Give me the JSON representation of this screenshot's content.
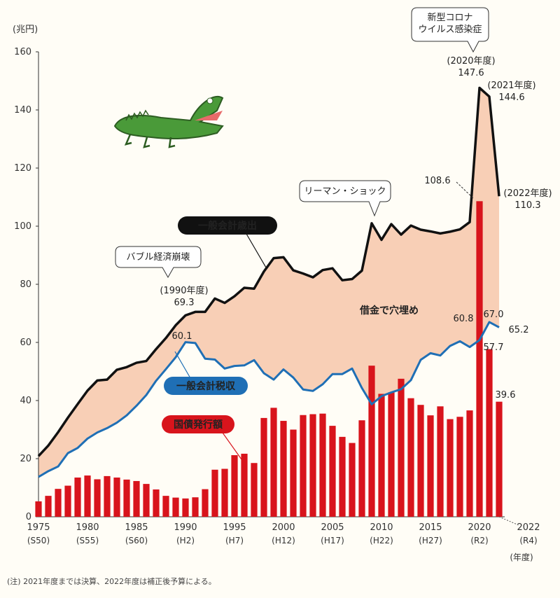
{
  "chart_data": {
    "type": "bar",
    "unit_label": "(兆円)",
    "x_unit_label": "(年度)",
    "ylim": [
      0,
      160
    ],
    "y_ticks": [
      0,
      20,
      40,
      60,
      80,
      100,
      120,
      140,
      160
    ],
    "x_ticks": [
      {
        "year": 1975,
        "label": "1975",
        "era": "(S50)"
      },
      {
        "year": 1980,
        "label": "1980",
        "era": "(S55)"
      },
      {
        "year": 1985,
        "label": "1985",
        "era": "(S60)"
      },
      {
        "year": 1990,
        "label": "1990",
        "era": "(H2)"
      },
      {
        "year": 1995,
        "label": "1995",
        "era": "(H7)"
      },
      {
        "year": 2000,
        "label": "2000",
        "era": "(H12)"
      },
      {
        "year": 2005,
        "label": "2005",
        "era": "(H17)"
      },
      {
        "year": 2010,
        "label": "2010",
        "era": "(H22)"
      },
      {
        "year": 2015,
        "label": "2015",
        "era": "(H27)"
      },
      {
        "year": 2020,
        "label": "2020",
        "era": "(R2)"
      },
      {
        "year": 2022,
        "label": "2022",
        "era": "(R4)"
      }
    ],
    "years": [
      1975,
      1976,
      1977,
      1978,
      1979,
      1980,
      1981,
      1982,
      1983,
      1984,
      1985,
      1986,
      1987,
      1988,
      1989,
      1990,
      1991,
      1992,
      1993,
      1994,
      1995,
      1996,
      1997,
      1998,
      1999,
      2000,
      2001,
      2002,
      2003,
      2004,
      2005,
      2006,
      2007,
      2008,
      2009,
      2010,
      2011,
      2012,
      2013,
      2014,
      2015,
      2016,
      2017,
      2018,
      2019,
      2020,
      2021,
      2022
    ],
    "series": [
      {
        "name": "一般会計歳出",
        "color": "#111111",
        "values": [
          20.9,
          24.5,
          29.1,
          34.1,
          38.8,
          43.4,
          46.9,
          47.2,
          50.6,
          51.5,
          53.0,
          53.6,
          57.7,
          61.5,
          65.9,
          69.3,
          70.5,
          70.5,
          75.1,
          73.6,
          75.9,
          78.8,
          78.5,
          84.4,
          89.0,
          89.3,
          84.8,
          83.7,
          82.4,
          84.9,
          85.5,
          81.4,
          81.8,
          84.7,
          101.0,
          95.3,
          100.7,
          97.1,
          100.2,
          98.8,
          98.2,
          97.5,
          98.1,
          98.9,
          101.4,
          147.6,
          144.6,
          110.3
        ]
      },
      {
        "name": "一般会計税収",
        "color": "#1f6fb5",
        "values": [
          13.7,
          15.7,
          17.3,
          21.9,
          23.7,
          26.9,
          29.0,
          30.5,
          32.4,
          34.9,
          38.2,
          41.9,
          46.8,
          50.8,
          54.9,
          60.1,
          59.8,
          54.4,
          54.1,
          51.0,
          51.9,
          52.1,
          53.9,
          49.4,
          47.2,
          50.7,
          47.9,
          43.8,
          43.3,
          45.6,
          49.1,
          49.1,
          51.0,
          44.3,
          38.7,
          41.5,
          42.8,
          43.9,
          47.0,
          54.0,
          56.3,
          55.5,
          58.8,
          60.4,
          58.4,
          60.8,
          67.0,
          65.2
        ]
      },
      {
        "name": "国債発行額",
        "color": "#d8141c",
        "values": [
          5.3,
          7.2,
          9.6,
          10.7,
          13.5,
          14.2,
          12.9,
          14.0,
          13.5,
          12.8,
          12.3,
          11.3,
          9.4,
          7.2,
          6.6,
          6.3,
          6.7,
          9.5,
          16.2,
          16.5,
          21.2,
          21.7,
          18.5,
          34.0,
          37.5,
          33.0,
          30.0,
          35.0,
          35.3,
          35.5,
          31.3,
          27.5,
          25.4,
          33.2,
          52.0,
          42.3,
          42.8,
          47.5,
          40.8,
          38.5,
          34.9,
          38.0,
          33.6,
          34.4,
          36.6,
          108.6,
          57.7,
          39.6
        ]
      }
    ],
    "shaded_area": "借金で穴埋め",
    "value_labels": {
      "y1990_spend": "(1990年度)\n69.3",
      "y1990_tax": "60.1",
      "y2020_spend": "(2020年度)\n147.6",
      "y2021_spend": "(2021年度)\n144.6",
      "y2022_spend": "(2022年度)\n110.3",
      "y2020_bond": "108.6",
      "y2020_tax": "60.8",
      "y2021_tax": "67.0",
      "y2022_tax": "65.2",
      "y2021_bond": "57.7",
      "y2022_bond": "39.6"
    },
    "callouts": {
      "bubble": "バブル経済崩壊",
      "lehman": "リーマン・ショック",
      "covid": "新型コロナ\nウイルス感染症"
    },
    "footnote": "(注) 2021年度までは決算、2022年度は補正後予算による。"
  }
}
